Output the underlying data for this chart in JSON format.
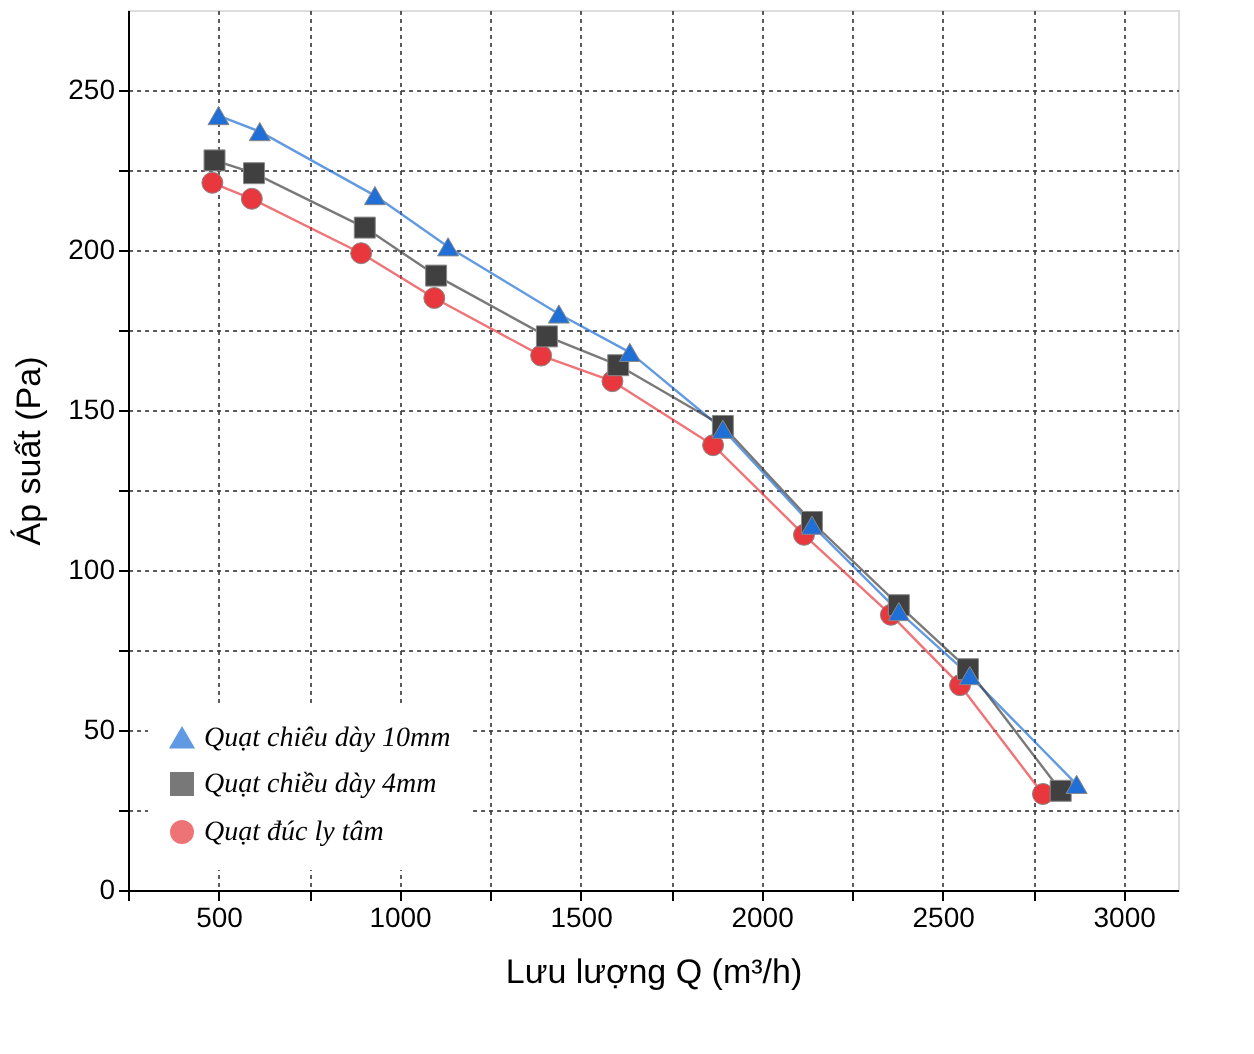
{
  "chart_data": {
    "type": "line",
    "xlabel": "Lưu lượng Q (m³/h)",
    "ylabel": "Áp suất (Pa)",
    "xlim": [
      250,
      3150
    ],
    "ylim": [
      0,
      275
    ],
    "xticks": [
      {
        "value": 250,
        "label": null
      },
      500,
      {
        "value": 750,
        "label": null
      },
      1000,
      {
        "value": 1250,
        "label": null
      },
      1500,
      {
        "value": 1750,
        "label": null
      },
      2000,
      {
        "value": 2250,
        "label": null
      },
      2500,
      {
        "value": 2750,
        "label": null
      },
      3000
    ],
    "yticks": [
      0,
      {
        "value": 25,
        "label": null
      },
      50,
      {
        "value": 75,
        "label": null
      },
      100,
      {
        "value": 125,
        "label": null
      },
      150,
      {
        "value": 175,
        "label": null
      },
      200,
      {
        "value": 225,
        "label": null
      },
      250
    ],
    "grid": true,
    "legend": "bottom left",
    "line_style": "solid",
    "series": [
      {
        "name": "Quạt chiêu dày 10mm",
        "color": "#1f6fd6",
        "marker": "triangle",
        "x": [
          500,
          614,
          932,
          1134,
          1440,
          1636,
          1893,
          2139,
          2379,
          2575,
          2870
        ],
        "values": [
          242,
          237,
          217,
          201,
          180,
          168,
          144,
          114,
          87,
          67,
          33
        ]
      },
      {
        "name": "Quạt chiều dày 4mm",
        "color": "#404040",
        "marker": "square",
        "x": [
          489,
          598,
          904,
          1101,
          1407,
          1604,
          1893,
          2139,
          2379,
          2570,
          2826
        ],
        "values": [
          228,
          224,
          207,
          192,
          173,
          164,
          145,
          115,
          89,
          69,
          31
        ]
      },
      {
        "name": "Quạt đúc ly tâm",
        "color": "#e8383d",
        "marker": "circle",
        "x": [
          483,
          592,
          894,
          1096,
          1391,
          1588,
          1866,
          2117,
          2357,
          2548,
          2777
        ],
        "values": [
          221,
          216,
          199,
          185,
          167,
          159,
          139,
          111,
          86,
          64,
          30
        ]
      }
    ]
  }
}
